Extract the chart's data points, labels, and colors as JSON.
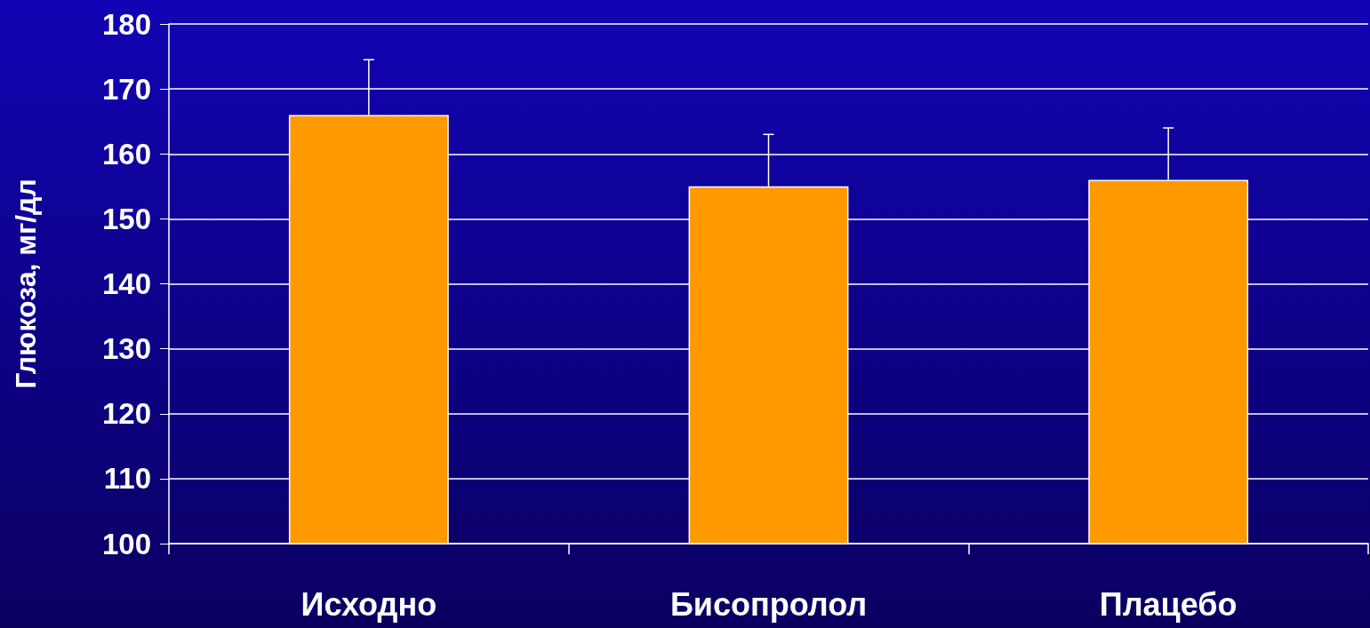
{
  "chart_data": {
    "type": "bar",
    "ylabel": "Глюкоза, мг/дл",
    "categories": [
      "Исходно",
      "Бисопролол",
      "Плацебо"
    ],
    "values": [
      166,
      155,
      156
    ],
    "color": "#ff9900",
    "errors": [
      [
        166,
        174.5
      ],
      [
        155,
        163
      ],
      [
        156,
        164
      ]
    ],
    "ylim": [
      100,
      180
    ],
    "yticks": [
      100,
      110,
      120,
      130,
      140,
      150,
      160,
      170,
      180
    ],
    "grid": "y"
  }
}
